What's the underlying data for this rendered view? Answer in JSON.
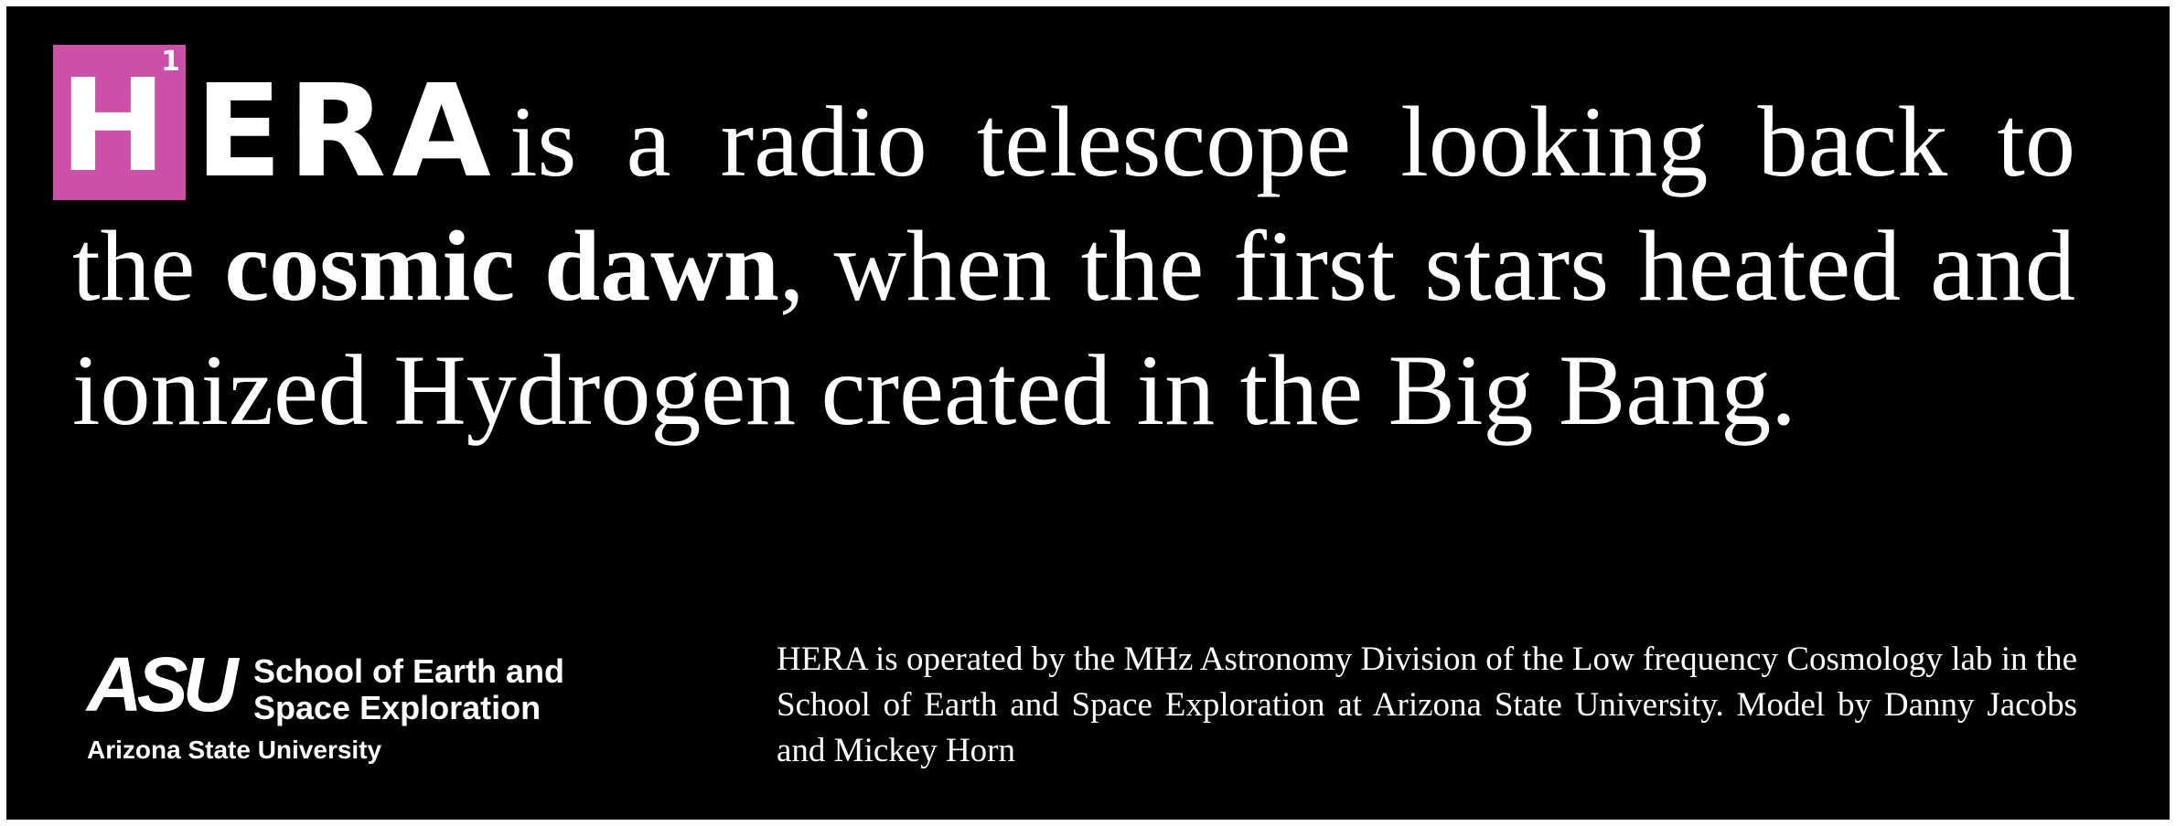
{
  "logo": {
    "h": "H",
    "sup": "1",
    "era": "ERA",
    "box_color": "#cc4fa8"
  },
  "headline": {
    "part1": "is a radio telescope looking back to the",
    "bold": "cosmic dawn",
    "part2": ", when the first stars heated and ionized Hydrogen created in the Big Bang."
  },
  "asu": {
    "mark": "ASU",
    "school_line1": "School of Earth and",
    "school_line2": "Space Exploration",
    "university": "Arizona State University"
  },
  "credit": {
    "text": "HERA is operated by the MHz Astronomy Division of the Low frequency Cosmology lab in the School of Earth and Space Exploration at Arizona State University.  Model by Danny Jacobs and Mickey Horn"
  }
}
